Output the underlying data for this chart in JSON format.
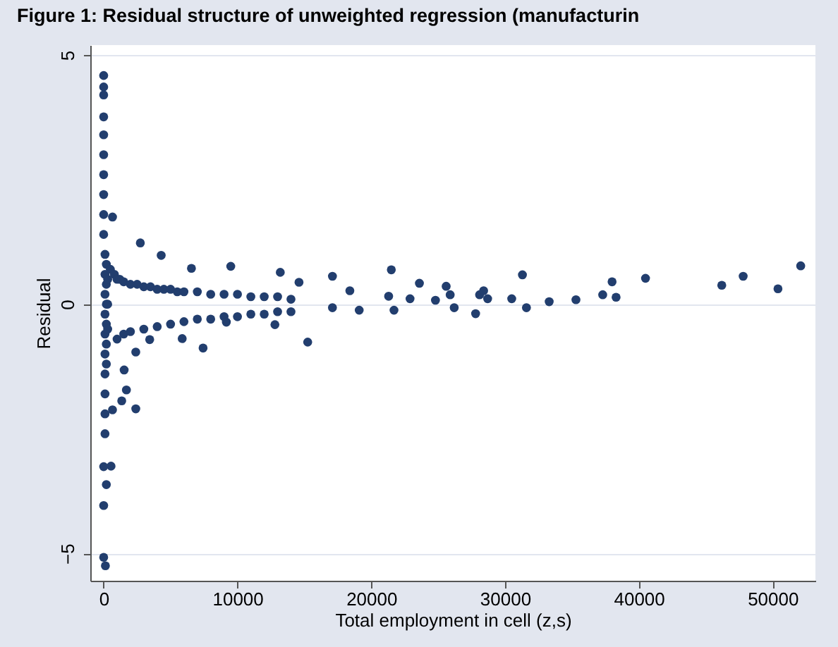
{
  "chart_data": {
    "type": "scatter",
    "title": "Figure 1:    Residual structure of unweighted regression (manufacturin",
    "xlabel": "Total employment in cell (z,s)",
    "ylabel": "Residual",
    "x": [
      0,
      0,
      0,
      0,
      0,
      0,
      0,
      0,
      0,
      0,
      100,
      100,
      100,
      100,
      100,
      100,
      100,
      100,
      100,
      100,
      200,
      200,
      200,
      200,
      200,
      200,
      300,
      300,
      300,
      130,
      0,
      0,
      200,
      550,
      0,
      660,
      660,
      2400,
      1350,
      1530,
      1700,
      500,
      800,
      1000,
      1200,
      1500,
      2000,
      2500,
      3000,
      3500,
      4000,
      4500,
      5000,
      5500,
      6000,
      7000,
      8000,
      9000,
      10000,
      11000,
      12000,
      13000,
      14000,
      1000,
      1500,
      2000,
      3000,
      4000,
      5000,
      6000,
      7000,
      8000,
      9000,
      10000,
      11000,
      12000,
      13000,
      14000,
      2740,
      4300,
      9500,
      6560,
      13200,
      17100,
      2400,
      3440,
      5870,
      7430,
      9170,
      12800,
      15250,
      14600,
      17100,
      18400,
      19100,
      21300,
      21500,
      21700,
      22900,
      23600,
      24800,
      25600,
      25900,
      26200,
      27800,
      28100,
      28400,
      28700,
      30500,
      31300,
      31600,
      33300,
      35300,
      37300,
      38000,
      38300,
      40500,
      46200,
      47800,
      50400,
      52100
    ],
    "values": [
      4.59,
      4.36,
      4.2,
      3.76,
      3.4,
      3.0,
      2.6,
      2.2,
      1.8,
      1.4,
      1.0,
      0.6,
      0.2,
      -0.2,
      -0.6,
      -1.0,
      -1.4,
      -1.8,
      -2.2,
      -2.6,
      0.8,
      0.4,
      0.0,
      -0.4,
      -0.8,
      -1.2,
      0.5,
      0.0,
      -0.5,
      -5.25,
      -5.08,
      -4.04,
      -3.62,
      -3.25,
      -3.26,
      1.75,
      -2.12,
      -2.1,
      -1.94,
      -1.32,
      -1.72,
      0.7,
      0.6,
      0.5,
      0.5,
      0.45,
      0.4,
      0.4,
      0.35,
      0.35,
      0.3,
      0.3,
      0.3,
      0.25,
      0.25,
      0.25,
      0.2,
      0.2,
      0.2,
      0.15,
      0.15,
      0.15,
      0.1,
      -0.7,
      -0.6,
      -0.55,
      -0.5,
      -0.45,
      -0.4,
      -0.35,
      -0.3,
      -0.3,
      -0.25,
      -0.25,
      -0.2,
      -0.2,
      -0.15,
      -0.15,
      1.23,
      0.98,
      0.76,
      0.72,
      0.64,
      0.56,
      -0.96,
      -0.71,
      -0.69,
      -0.88,
      -0.36,
      -0.41,
      -0.76,
      0.44,
      -0.07,
      0.27,
      -0.12,
      0.16,
      0.69,
      -0.12,
      0.11,
      0.42,
      0.08,
      0.36,
      0.19,
      -0.07,
      -0.19,
      0.19,
      0.27,
      0.11,
      0.11,
      0.59,
      -0.07,
      0.05,
      0.09,
      0.19,
      0.45,
      0.14,
      0.52,
      0.38,
      0.56,
      0.31,
      0.77
    ],
    "color": "#223e6e",
    "marker": "circle",
    "xlim": [
      -1000,
      53200
    ],
    "ylim": [
      -5.55,
      5.2
    ],
    "xticks": [
      0,
      10000,
      20000,
      30000,
      40000,
      50000
    ],
    "yticks": [
      -5,
      0,
      5
    ],
    "grid": "y"
  }
}
